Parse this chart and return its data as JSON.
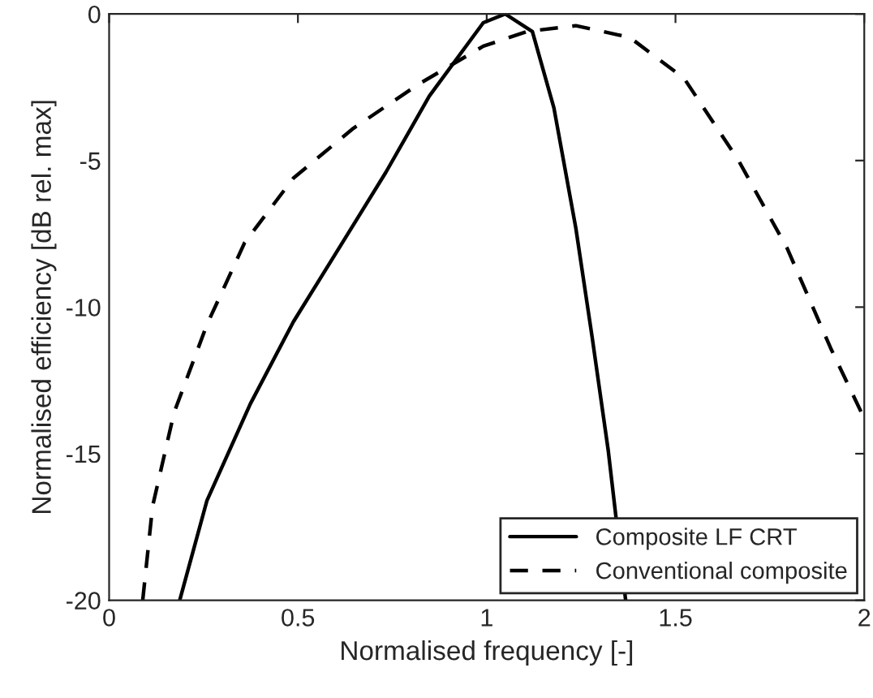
{
  "chart_data": {
    "type": "line",
    "xlabel": "Normalised frequency [-]",
    "ylabel": "Normalised efficiency [dB rel. max]",
    "xlim": [
      0,
      2
    ],
    "ylim": [
      -20,
      0
    ],
    "xticks": [
      0,
      0.5,
      1,
      1.5,
      2
    ],
    "yticks": [
      -20,
      -15,
      -10,
      -5,
      0
    ],
    "grid": false,
    "legend": "bottom right",
    "series": [
      {
        "name": "Composite LF CRT",
        "color": "#000000",
        "line_style": "solid",
        "x": [
          0.187,
          0.259,
          0.374,
          0.488,
          0.618,
          0.733,
          0.848,
          0.991,
          1.049,
          1.121,
          1.178,
          1.236,
          1.279,
          1.322,
          1.368
        ],
        "values": [
          -20,
          -16.6,
          -13.3,
          -10.5,
          -7.8,
          -5.4,
          -2.8,
          -0.3,
          0,
          -0.6,
          -3.2,
          -7.3,
          -11,
          -14.9,
          -20
        ]
      },
      {
        "name": "Conventional composite",
        "color": "#000000",
        "line_style": "dashed",
        "x": [
          0.089,
          0.115,
          0.172,
          0.259,
          0.359,
          0.488,
          0.647,
          0.819,
          0.991,
          1.106,
          1.236,
          1.379,
          1.523,
          1.667,
          1.796,
          1.911,
          2.0
        ],
        "values": [
          -20,
          -16.8,
          -13.6,
          -10.6,
          -7.8,
          -5.6,
          -3.9,
          -2.4,
          -1.1,
          -0.6,
          -0.4,
          -0.8,
          -2.2,
          -5,
          -8,
          -11.4,
          -13.8
        ]
      }
    ]
  }
}
